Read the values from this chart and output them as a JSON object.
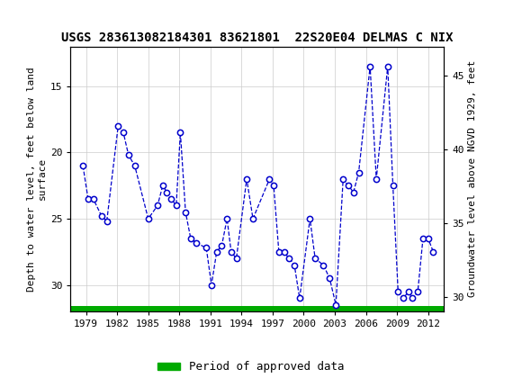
{
  "title": "USGS 283613082184301 83621801  22S20E04 DELMAS C NIX",
  "ylabel_left": "Depth to water level, feet below land\nsurface",
  "ylabel_right": "Groundwater level above NGVD 1929, feet",
  "legend_label": "Period of approved data",
  "legend_color": "#00aa00",
  "header_color": "#1e7a34",
  "line_color": "#0000cc",
  "marker_edgecolor": "#0000cc",
  "background_color": "#ffffff",
  "years": [
    1978.7,
    1979.2,
    1979.7,
    1980.5,
    1981.0,
    1982.1,
    1982.6,
    1983.1,
    1983.7,
    1985.0,
    1985.9,
    1986.4,
    1986.8,
    1987.2,
    1987.7,
    1988.1,
    1988.6,
    1989.1,
    1989.6,
    1990.6,
    1991.1,
    1991.6,
    1992.1,
    1992.6,
    1993.0,
    1993.5,
    1994.5,
    1995.1,
    1996.7,
    1997.1,
    1997.6,
    1998.1,
    1998.6,
    1999.1,
    1999.6,
    2000.6,
    2001.1,
    2001.9,
    2002.5,
    2003.1,
    2003.8,
    2004.3,
    2004.8,
    2005.3,
    2006.4,
    2007.0,
    2008.1,
    2008.6,
    2009.1,
    2009.6,
    2010.1,
    2010.5,
    2011.0,
    2011.5,
    2012.0,
    2012.5
  ],
  "depths": [
    21.0,
    23.5,
    23.5,
    24.8,
    25.2,
    18.0,
    18.5,
    20.2,
    21.0,
    25.0,
    24.0,
    22.5,
    23.0,
    23.5,
    24.0,
    18.5,
    24.5,
    26.5,
    26.8,
    27.2,
    30.0,
    27.5,
    27.0,
    25.0,
    27.5,
    28.0,
    22.0,
    25.0,
    22.0,
    22.5,
    27.5,
    27.5,
    28.0,
    28.5,
    31.0,
    25.0,
    28.0,
    28.5,
    29.5,
    31.5,
    22.0,
    22.5,
    23.0,
    21.5,
    13.5,
    22.0,
    13.5,
    22.5,
    30.5,
    31.0,
    30.5,
    31.0,
    30.5,
    26.5,
    26.5,
    27.5
  ],
  "ylim_left": [
    32,
    12
  ],
  "ylim_right": [
    29.0,
    47.0
  ],
  "xticks": [
    1979,
    1982,
    1985,
    1988,
    1991,
    1994,
    1997,
    2000,
    2003,
    2006,
    2009,
    2012
  ],
  "yticks_left": [
    15,
    20,
    25,
    30
  ],
  "yticks_right": [
    30,
    35,
    40,
    45
  ],
  "xlim": [
    1977.5,
    2013.5
  ],
  "green_bar_ymin": 31.55,
  "green_bar_ymax": 32.0,
  "font_size_title": 10,
  "font_size_axis": 8,
  "font_size_tick": 8,
  "font_size_legend": 9
}
